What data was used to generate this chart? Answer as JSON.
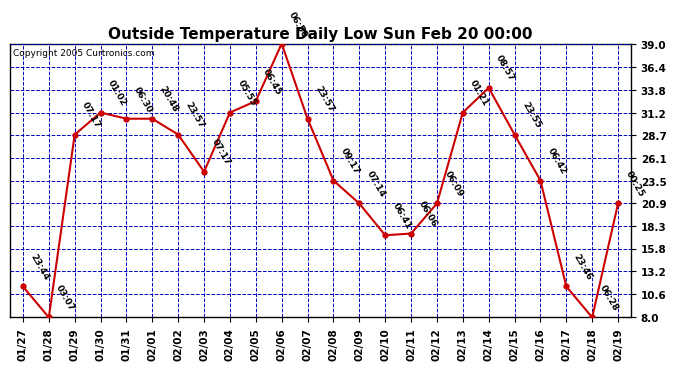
{
  "title": "Outside Temperature Daily Low Sun Feb 20 00:00",
  "copyright": "Copyright 2005 Curtronics.com",
  "x_labels": [
    "01/27",
    "01/28",
    "01/29",
    "01/30",
    "01/31",
    "02/01",
    "02/02",
    "02/03",
    "02/04",
    "02/05",
    "02/06",
    "02/07",
    "02/08",
    "02/09",
    "02/10",
    "02/11",
    "02/12",
    "02/13",
    "02/14",
    "02/15",
    "02/16",
    "02/17",
    "02/18",
    "02/19"
  ],
  "y_values": [
    11.5,
    8.0,
    28.7,
    31.2,
    30.5,
    30.5,
    28.7,
    24.5,
    31.2,
    32.5,
    39.0,
    30.5,
    23.5,
    20.9,
    17.3,
    17.5,
    20.9,
    31.2,
    34.0,
    28.7,
    23.5,
    11.5,
    8.0,
    20.9
  ],
  "point_labels": [
    "23:44",
    "03:07",
    "07:17",
    "01:02",
    "06:30",
    "20:48",
    "23:57",
    "07:17",
    "05:55",
    "06:45",
    "06:50",
    "23:57",
    "09:17",
    "07:14",
    "06:41",
    "06:06",
    "06:09",
    "01:21",
    "08:57",
    "23:55",
    "06:42",
    "23:46",
    "06:28",
    "00:25"
  ],
  "ylim": [
    8.0,
    39.0
  ],
  "yticks": [
    8.0,
    10.6,
    13.2,
    15.8,
    18.3,
    20.9,
    23.5,
    26.1,
    28.7,
    31.2,
    33.8,
    36.4,
    39.0
  ],
  "line_color": "#cc0000",
  "marker_color": "#cc0000",
  "bg_color": "#ffffff",
  "plot_bg_color": "#ffffff",
  "grid_color": "#0000bb",
  "title_fontsize": 11,
  "copyright_fontsize": 6.5,
  "label_fontsize": 6.5,
  "tick_fontsize": 7.5
}
